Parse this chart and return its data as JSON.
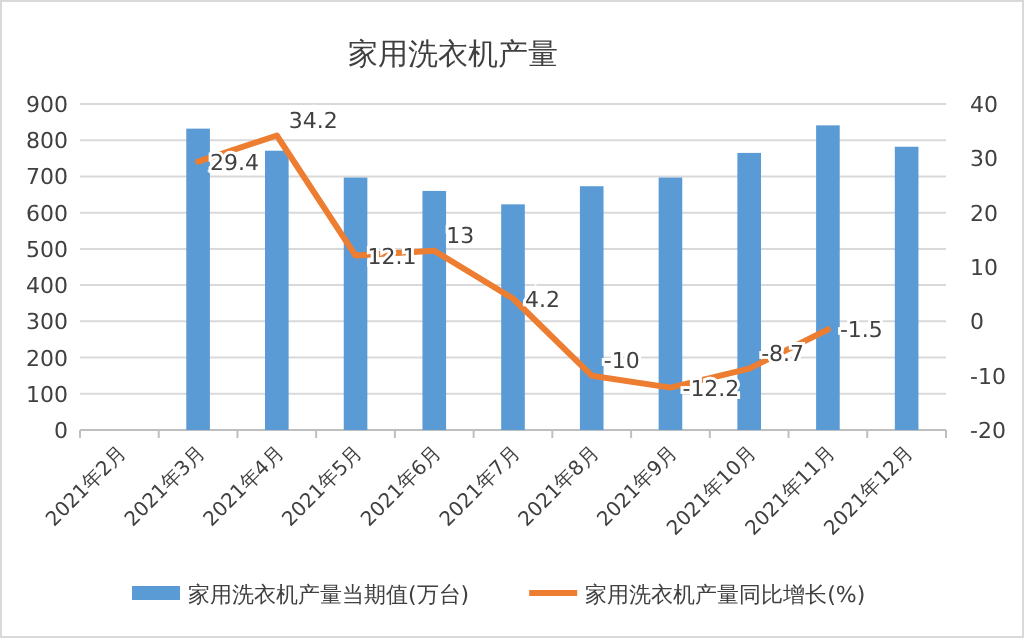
{
  "chart_data": {
    "type": "bar",
    "title": "家用洗衣机产量",
    "categories": [
      "2021年2月",
      "2021年3月",
      "2021年4月",
      "2021年5月",
      "2021年6月",
      "2021年7月",
      "2021年8月",
      "2021年9月",
      "2021年10月",
      "2021年11月",
      "2021年12月"
    ],
    "series": [
      {
        "name": "家用洗衣机产量当期值(万台)",
        "color": "#5b9bd5",
        "values": [
          null,
          832,
          771,
          697,
          660,
          623,
          673,
          697,
          765,
          841,
          782
        ]
      },
      {
        "name": "家用洗衣机产量同比增长(%)",
        "type": "line",
        "axis": "y2",
        "color": "#ed7d31",
        "values": [
          null,
          29.4,
          34.2,
          12.1,
          13,
          4.2,
          -10,
          -12.2,
          -8.7,
          -1.5,
          null
        ],
        "value_labels": [
          null,
          "29.4",
          "34.2",
          "12.1",
          "13",
          "4.2",
          "-10",
          "-12.2",
          "-8.7",
          "-1.5",
          null
        ]
      }
    ],
    "ylim": [
      0,
      900
    ],
    "yticks": [
      0,
      100,
      200,
      300,
      400,
      500,
      600,
      700,
      800,
      900
    ],
    "y2lim": [
      -20,
      40
    ],
    "y2ticks": [
      -20,
      -10,
      0,
      10,
      20,
      30,
      40
    ],
    "grid": "y",
    "legend": "bottom",
    "marker": "none",
    "line_style": "solid"
  }
}
